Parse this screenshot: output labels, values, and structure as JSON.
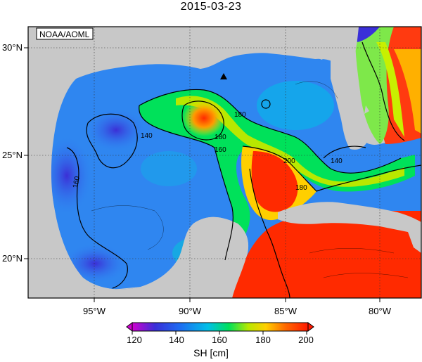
{
  "header": {
    "date": "2015-03-23"
  },
  "map": {
    "credit": "NOAA/AOML",
    "lon_ticks": [
      "95°W",
      "90°W",
      "85°W",
      "80°W"
    ],
    "lat_ticks": [
      "30°N",
      "25°N",
      "20°N"
    ],
    "contour_labels": [
      "140",
      "160",
      "180",
      "160",
      "140",
      "180",
      "160",
      "200",
      "180",
      "160"
    ],
    "land_color": "#c8c8c8",
    "ocean_base_color": "#2f7cf2"
  },
  "colorbar": {
    "ticks": [
      "120",
      "140",
      "160",
      "180",
      "200"
    ],
    "label": "SH [cm]",
    "colors": [
      "#d000d0",
      "#3a2fd8",
      "#1e6cf2",
      "#00bfe8",
      "#00e15a",
      "#b8e800",
      "#ffcf00",
      "#ff6a00",
      "#ff1800"
    ]
  }
}
